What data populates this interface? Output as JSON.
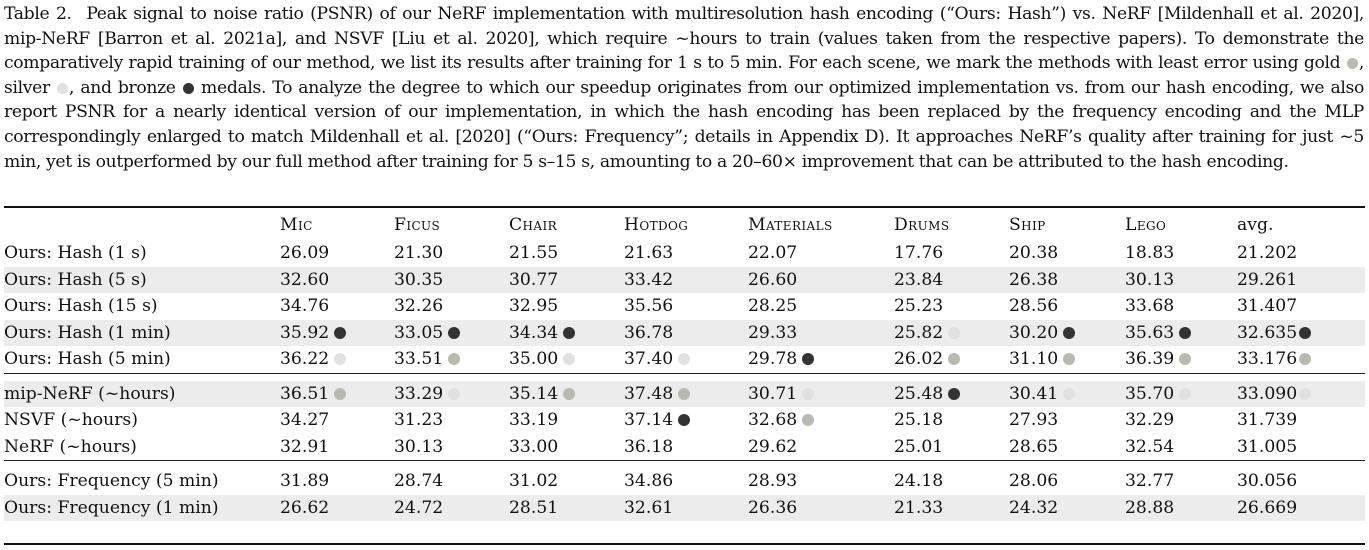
{
  "medal_colors": {
    "gold": "#b9b9b2",
    "silver": "#e1e1e1",
    "bronze": "#333333"
  },
  "caption": {
    "label": "Table 2.",
    "part1": "Peak signal to noise ratio (PSNR) of our NeRF implementation with multiresolution hash encoding (“Ours: Hash”) vs. NeRF [Mildenhall et al. 2020], mip-NeRF [Barron et al. 2021a], and NSVF [Liu et al. 2020], which require ~hours to train (values taken from the respective papers). To demonstrate the comparatively rapid training of our method, we list its results after training for 1 s to 5 min. For each scene, we mark the methods with least error using gold",
    "part2": ", silver",
    "part3": ", and bronze",
    "part4": "medals. To analyze the degree to which our speedup originates from our optimized implementation vs. from our hash encoding, we also report PSNR for a nearly identical version of our implementation, in which the hash encoding has been replaced by the frequency encoding and the MLP correspondingly enlarged to match Mildenhall et al. [2020] (“Ours: Frequency”; details in Appendix D). It approaches NeRF’s quality after training for just ~5 min, yet is outperformed by our full method after training for 5 s–15 s, amounting to a 20–60× improvement that can be attributed to the hash encoding."
  },
  "table": {
    "columns": [
      "",
      "Mic",
      "Ficus",
      "Chair",
      "Hotdog",
      "Materials",
      "Drums",
      "Ship",
      "Lego",
      "avg."
    ],
    "groups": [
      [
        {
          "method": "Ours: Hash (1 s)",
          "values": [
            "26.09",
            "21.30",
            "21.55",
            "21.63",
            "22.07",
            "17.76",
            "20.38",
            "18.83",
            "21.202"
          ],
          "medals": [
            "",
            "",
            "",
            "",
            "",
            "",
            "",
            "",
            ""
          ]
        },
        {
          "method": "Ours: Hash (5 s)",
          "values": [
            "32.60",
            "30.35",
            "30.77",
            "33.42",
            "26.60",
            "23.84",
            "26.38",
            "30.13",
            "29.261"
          ],
          "medals": [
            "",
            "",
            "",
            "",
            "",
            "",
            "",
            "",
            ""
          ]
        },
        {
          "method": "Ours: Hash (15 s)",
          "values": [
            "34.76",
            "32.26",
            "32.95",
            "35.56",
            "28.25",
            "25.23",
            "28.56",
            "33.68",
            "31.407"
          ],
          "medals": [
            "",
            "",
            "",
            "",
            "",
            "",
            "",
            "",
            ""
          ]
        },
        {
          "method": "Ours: Hash (1 min)",
          "values": [
            "35.92",
            "33.05",
            "34.34",
            "36.78",
            "29.33",
            "25.82",
            "30.20",
            "35.63",
            "32.635"
          ],
          "medals": [
            "bronze",
            "bronze",
            "bronze",
            "",
            "",
            "silver",
            "bronze",
            "bronze",
            "bronze"
          ]
        },
        {
          "method": "Ours: Hash (5 min)",
          "values": [
            "36.22",
            "33.51",
            "35.00",
            "37.40",
            "29.78",
            "26.02",
            "31.10",
            "36.39",
            "33.176"
          ],
          "medals": [
            "silver",
            "gold",
            "silver",
            "silver",
            "bronze",
            "gold",
            "gold",
            "gold",
            "gold"
          ]
        }
      ],
      [
        {
          "method": "mip-NeRF (~hours)",
          "values": [
            "36.51",
            "33.29",
            "35.14",
            "37.48",
            "30.71",
            "25.48",
            "30.41",
            "35.70",
            "33.090"
          ],
          "medals": [
            "gold",
            "silver",
            "gold",
            "gold",
            "silver",
            "bronze",
            "silver",
            "silver",
            "silver"
          ]
        },
        {
          "method": "NSVF (~hours)",
          "values": [
            "34.27",
            "31.23",
            "33.19",
            "37.14",
            "32.68",
            "25.18",
            "27.93",
            "32.29",
            "31.739"
          ],
          "medals": [
            "",
            "",
            "",
            "bronze",
            "gold",
            "",
            "",
            "",
            ""
          ]
        },
        {
          "method": "NeRF (~hours)",
          "values": [
            "32.91",
            "30.13",
            "33.00",
            "36.18",
            "29.62",
            "25.01",
            "28.65",
            "32.54",
            "31.005"
          ],
          "medals": [
            "",
            "",
            "",
            "",
            "",
            "",
            "",
            "",
            ""
          ]
        }
      ],
      [
        {
          "method": "Ours: Frequency (5 min)",
          "values": [
            "31.89",
            "28.74",
            "31.02",
            "34.86",
            "28.93",
            "24.18",
            "28.06",
            "32.77",
            "30.056"
          ],
          "medals": [
            "",
            "",
            "",
            "",
            "",
            "",
            "",
            "",
            ""
          ]
        },
        {
          "method": "Ours: Frequency (1 min)",
          "values": [
            "26.62",
            "24.72",
            "28.51",
            "32.61",
            "26.36",
            "21.33",
            "24.32",
            "28.88",
            "26.669"
          ],
          "medals": [
            "",
            "",
            "",
            "",
            "",
            "",
            "",
            "",
            ""
          ]
        }
      ]
    ]
  }
}
